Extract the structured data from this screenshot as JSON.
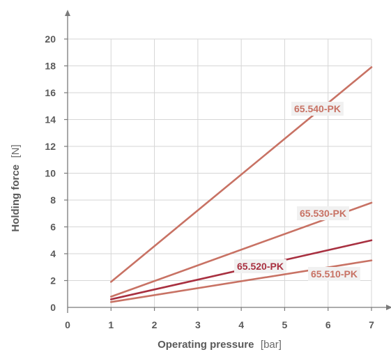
{
  "chart_data": {
    "type": "line",
    "x_axis": {
      "title": "Operating pressure",
      "unit": "[bar]",
      "ticks": [
        "0",
        "1",
        "2",
        "3",
        "4",
        "5",
        "6",
        "7"
      ],
      "range": [
        0,
        7
      ]
    },
    "y_axis": {
      "title": "Holding force",
      "unit": "[N]",
      "ticks": [
        "0",
        "2",
        "4",
        "6",
        "8",
        "10",
        "12",
        "14",
        "16",
        "18",
        "20"
      ],
      "range": [
        0,
        20
      ]
    },
    "grid": true,
    "series": [
      {
        "name": "65.540-PK",
        "x": [
          1,
          7
        ],
        "y": [
          1.9,
          17.9
        ],
        "color": "#c87264"
      },
      {
        "name": "65.530-PK",
        "x": [
          1,
          7
        ],
        "y": [
          0.8,
          7.8
        ],
        "color": "#c87264"
      },
      {
        "name": "65.520-PK",
        "x": [
          1,
          7
        ],
        "y": [
          0.6,
          5.0
        ],
        "color": "#a83040"
      },
      {
        "name": "65.510-PK",
        "x": [
          1,
          7
        ],
        "y": [
          0.4,
          3.5
        ],
        "color": "#c87264"
      }
    ],
    "colors": {
      "axis": "#7a7a7a",
      "grid": "#d6d6d6",
      "label_background": "#f1f1f1"
    }
  }
}
